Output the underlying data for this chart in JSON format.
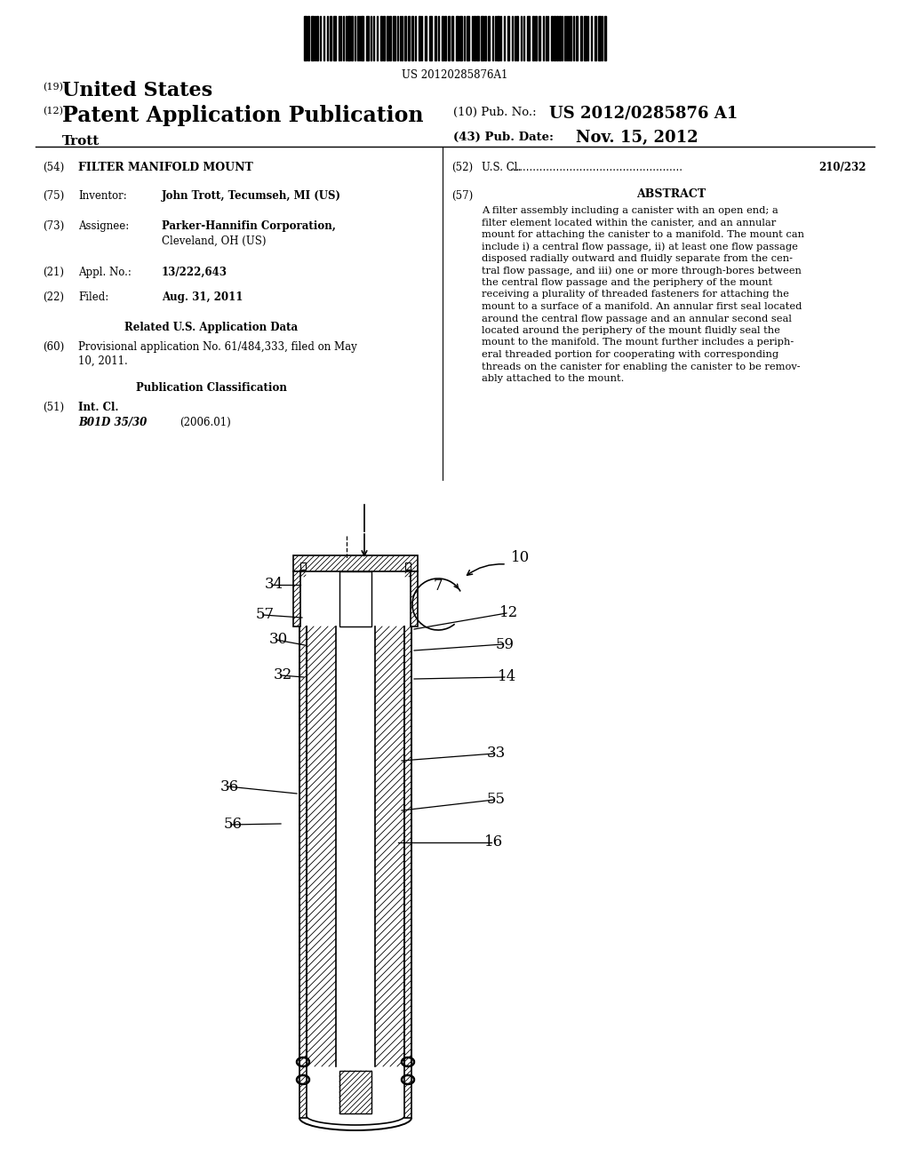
{
  "bg_color": "#ffffff",
  "barcode_text": "US 20120285876A1",
  "title_19": "(19)",
  "title_19_text": "United States",
  "title_12": "(12)",
  "title_12_text": "Patent Application Publication",
  "title_author": "Trott",
  "pub_no_label": "(10) Pub. No.:",
  "pub_no_value": "US 2012/0285876 A1",
  "pub_date_label": "(43) Pub. Date:",
  "pub_date_value": "Nov. 15, 2012",
  "field54_label": "(54)",
  "field54_text": "FILTER MANIFOLD MOUNT",
  "field75_num": "(75)",
  "field75_label": "Inventor:",
  "field75_value": "John Trott, Tecumseh, MI (US)",
  "field73_num": "(73)",
  "field73_label": "Assignee:",
  "field73_value_line1": "Parker-Hannifin Corporation,",
  "field73_value_line2": "Cleveland, OH (US)",
  "field21_num": "(21)",
  "field21_label": "Appl. No.:",
  "field21_value": "13/222,643",
  "field22_num": "(22)",
  "field22_label": "Filed:",
  "field22_value": "Aug. 31, 2011",
  "related_header": "Related U.S. Application Data",
  "field60_num": "(60)",
  "field60_line1": "Provisional application No. 61/484,333, filed on May",
  "field60_line2": "10, 2011.",
  "pub_class_header": "Publication Classification",
  "field51_num": "(51)",
  "field51_label": "Int. Cl.",
  "field51_class": "B01D 35/30",
  "field51_year": "(2006.01)",
  "field52_num": "(52)",
  "field52_label": "U.S. Cl.",
  "field52_value": "210/232",
  "field57_num": "(57)",
  "field57_header": "ABSTRACT",
  "abstract_lines": [
    "A filter assembly including a canister with an open end; a",
    "filter element located within the canister, and an annular",
    "mount for attaching the canister to a manifold. The mount can",
    "include i) a central flow passage, ii) at least one flow passage",
    "disposed radially outward and fluidly separate from the cen-",
    "tral flow passage, and iii) one or more through-bores between",
    "the central flow passage and the periphery of the mount",
    "receiving a plurality of threaded fasteners for attaching the",
    "mount to a surface of a manifold. An annular first seal located",
    "around the central flow passage and an annular second seal",
    "located around the periphery of the mount fluidly seal the",
    "mount to the manifold. The mount further includes a periph-",
    "eral threaded portion for cooperating with corresponding",
    "threads on the canister for enabling the canister to be remov-",
    "ably attached to the mount."
  ]
}
